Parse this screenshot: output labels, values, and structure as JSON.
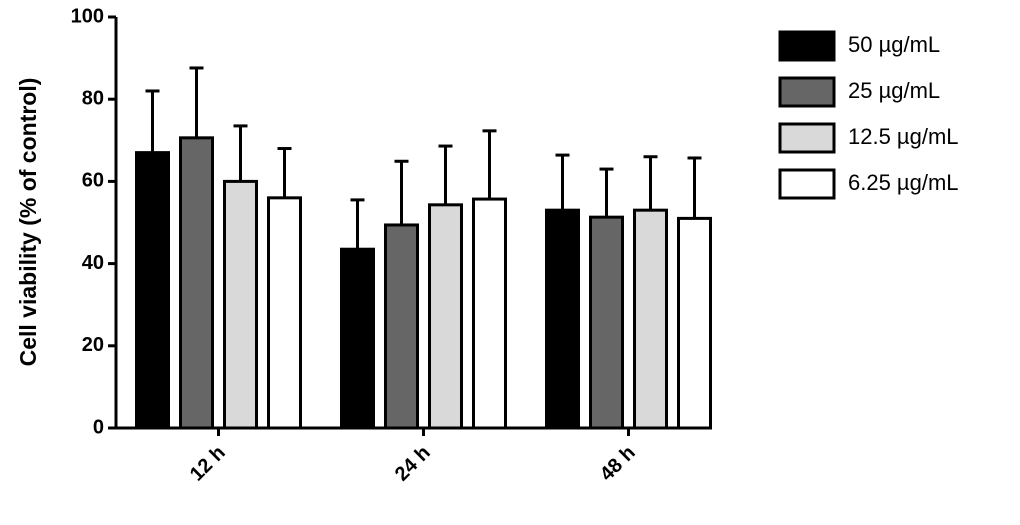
{
  "chart_data": {
    "type": "bar",
    "y_label": "Cell viability (% of control)",
    "categories": [
      "12 h",
      "24 h",
      "48 h"
    ],
    "series": [
      {
        "name": "50 µg/mL",
        "color": "#000000",
        "values": [
          67,
          43.5,
          53
        ],
        "errors": [
          15,
          12,
          13.4
        ]
      },
      {
        "name": "25 µg/mL",
        "color": "#666666",
        "values": [
          70.6,
          49.4,
          51.3
        ],
        "errors": [
          17,
          15.5,
          11.7
        ]
      },
      {
        "name": "12.5 µg/mL",
        "color": "#d9d9d9",
        "values": [
          60,
          54.3,
          53
        ],
        "errors": [
          13.5,
          14.3,
          13
        ]
      },
      {
        "name": "6.25 µg/mL",
        "color": "#ffffff",
        "values": [
          56,
          55.7,
          51
        ],
        "errors": [
          12,
          16.6,
          14.7
        ]
      }
    ],
    "ylim": [
      0,
      100
    ],
    "yticks": [
      0,
      20,
      40,
      60,
      80,
      100
    ],
    "legend": "right"
  }
}
